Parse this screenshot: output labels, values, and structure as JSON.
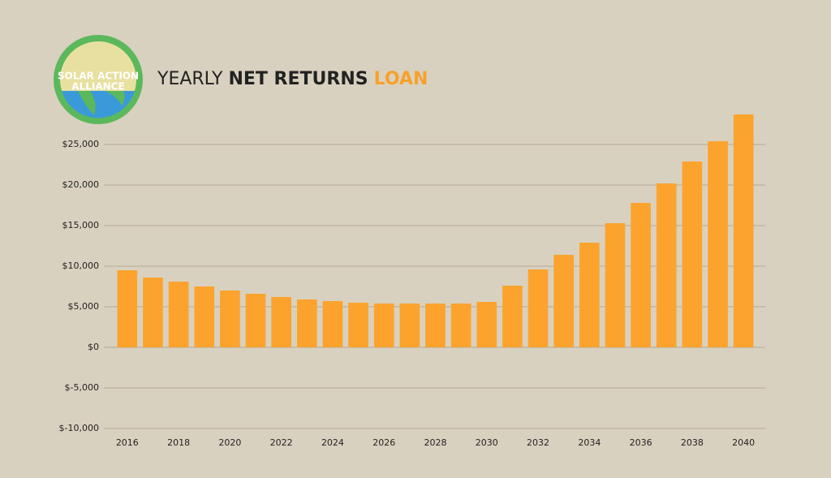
{
  "chart_data": {
    "type": "bar",
    "logo": {
      "lines": [
        "SOLAR ACTION",
        "ALLIANCE"
      ]
    },
    "title": [
      "YEARLY",
      "NET RETURNS",
      "LOAN"
    ],
    "categories": [
      "2016",
      null,
      "2018",
      null,
      "2020",
      null,
      "2022",
      null,
      "2024",
      null,
      "2026",
      null,
      "2028",
      null,
      "2030",
      null,
      "2032",
      null,
      "2034",
      null,
      "2036",
      null,
      "2038",
      null,
      "2040"
    ],
    "values": [
      9500,
      8600,
      8100,
      7500,
      7000,
      6600,
      6200,
      5900,
      5700,
      5500,
      5400,
      5400,
      5400,
      5400,
      5600,
      7600,
      9600,
      11400,
      12900,
      15300,
      17800,
      20200,
      22900,
      25400,
      28700
    ],
    "color": "#fca32e",
    "ylim": [
      -10000,
      30000
    ],
    "yticks": [
      {
        "value": -10000,
        "label": "$-10,000"
      },
      {
        "value": -5000,
        "label": "$-5,000"
      },
      {
        "value": 0,
        "label": "$0"
      },
      {
        "value": 5000,
        "label": "$5,000"
      },
      {
        "value": 10000,
        "label": "$10,000"
      },
      {
        "value": 15000,
        "label": "$15,000"
      },
      {
        "value": 20000,
        "label": "$20,000"
      },
      {
        "value": 25000,
        "label": "$25,000"
      }
    ],
    "grid": true
  }
}
